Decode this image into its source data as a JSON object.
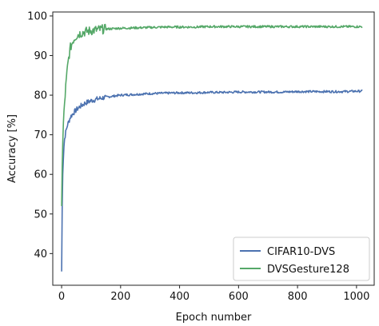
{
  "chart_data": {
    "type": "line",
    "xlabel": "Epoch number",
    "ylabel": "Accuracy [%]",
    "xlim": [
      -30,
      1060
    ],
    "ylim": [
      32,
      101
    ],
    "xticks": [
      0,
      200,
      400,
      600,
      800,
      1000
    ],
    "yticks": [
      40,
      50,
      60,
      70,
      80,
      90,
      100
    ],
    "grid": false,
    "legend_position": "lower-right",
    "series": [
      {
        "name": "CIFAR10-DVS",
        "color": "#4c72b0",
        "x": [
          0,
          2,
          4,
          6,
          8,
          10,
          15,
          20,
          25,
          30,
          40,
          50,
          60,
          70,
          80,
          100,
          120,
          150,
          200,
          250,
          300,
          350,
          400,
          450,
          500,
          550,
          600,
          650,
          700,
          750,
          800,
          850,
          900,
          950,
          1000,
          1020
        ],
        "y": [
          35.5,
          52,
          60,
          64,
          67,
          69,
          71,
          72.5,
          73.5,
          74.5,
          75.5,
          76.3,
          77,
          77.5,
          78,
          78.6,
          79,
          79.5,
          80,
          80.2,
          80.4,
          80.5,
          80.6,
          80.6,
          80.7,
          80.7,
          80.8,
          80.8,
          80.8,
          80.8,
          80.9,
          80.9,
          80.9,
          80.9,
          81,
          81
        ]
      },
      {
        "name": "DVSGesture128",
        "color": "#55a868",
        "x": [
          0,
          2,
          4,
          6,
          8,
          10,
          15,
          20,
          25,
          30,
          40,
          50,
          60,
          70,
          80,
          100,
          120,
          150,
          200,
          250,
          300,
          350,
          400,
          450,
          500,
          550,
          600,
          650,
          700,
          750,
          800,
          850,
          900,
          950,
          1000,
          1020
        ],
        "y": [
          52,
          62,
          68,
          73,
          76,
          78,
          83,
          87,
          90,
          92,
          94,
          95,
          95.5,
          95.8,
          96,
          96.3,
          96.5,
          96.7,
          96.9,
          97,
          97.1,
          97.2,
          97.2,
          97.2,
          97.3,
          97.3,
          97.3,
          97.3,
          97.3,
          97.3,
          97.3,
          97.3,
          97.3,
          97.3,
          97.3,
          97.3
        ]
      }
    ]
  }
}
